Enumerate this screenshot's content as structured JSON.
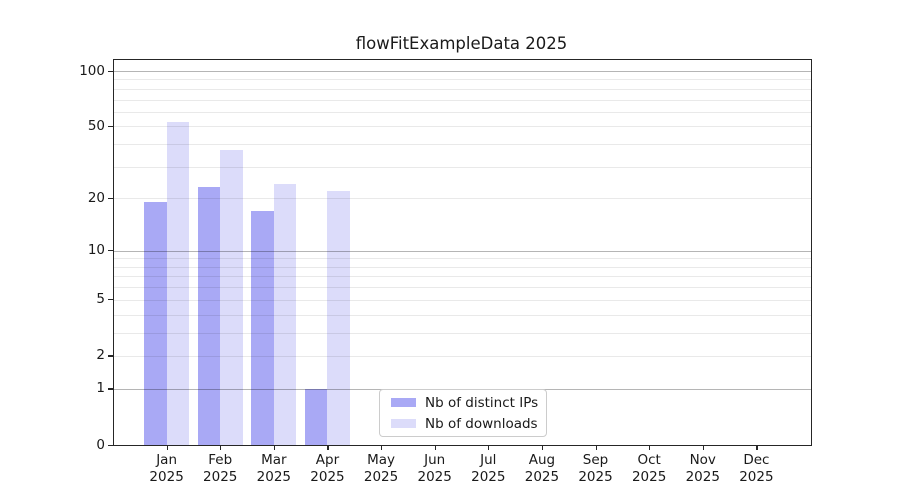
{
  "title": "flowFitExampleData 2025",
  "chart_data": {
    "type": "bar",
    "title": "flowFitExampleData 2025",
    "categories": [
      "Jan",
      "Feb",
      "Mar",
      "Apr",
      "May",
      "Jun",
      "Jul",
      "Aug",
      "Sep",
      "Oct",
      "Nov",
      "Dec"
    ],
    "year_label": "2025",
    "series": [
      {
        "name": "Nb of distinct IPs",
        "color": "#a9a9f5",
        "values": [
          19,
          23,
          17,
          1,
          0,
          0,
          0,
          0,
          0,
          0,
          0,
          0
        ]
      },
      {
        "name": "Nb of downloads",
        "color": "#dcdcfa",
        "values": [
          53,
          37,
          24,
          22,
          0,
          0,
          0,
          0,
          0,
          0,
          0,
          0
        ]
      }
    ],
    "y_scale": "symlog",
    "y_ticks": [
      0,
      1,
      2,
      5,
      10,
      20,
      50,
      100
    ],
    "y_major_gridlines": [
      1,
      10,
      100
    ],
    "y_minor_gridlines": [
      2,
      3,
      4,
      5,
      6,
      7,
      8,
      9,
      20,
      30,
      40,
      50,
      60,
      70,
      80,
      90
    ],
    "ylim": [
      0,
      113
    ],
    "xlabel": "",
    "ylabel": "",
    "grid": "horizontal",
    "legend_position": "lower center",
    "colors": {
      "background": "#ffffff",
      "axis": "#262626",
      "text": "#1a1a1a",
      "major_grid": "#b5b5b5",
      "minor_grid": "#e8e8e8"
    }
  }
}
